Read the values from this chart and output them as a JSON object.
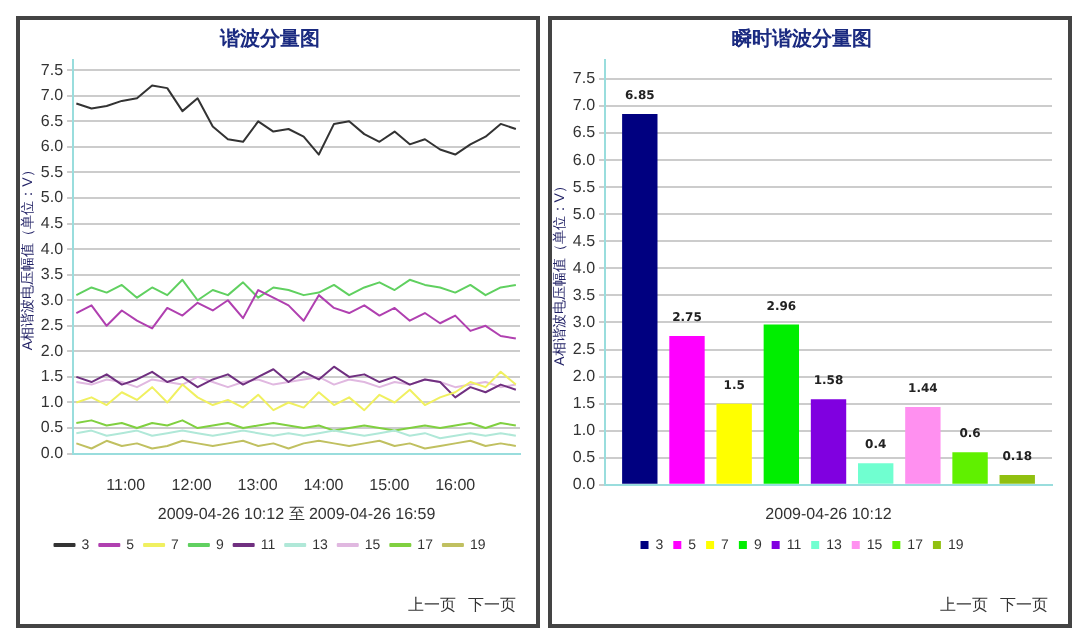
{
  "chart_data": [
    {
      "type": "line",
      "title": "谐波分量图",
      "xlabel": "2009-04-26 10:12 至 2009-04-26 16:59",
      "ylabel": "A相谐波电压幅值（单位：V）",
      "annotations": [
        "上一页",
        "下一页"
      ],
      "legend": "bottom",
      "grid": "y",
      "marker": "none",
      "xlim": [
        10.2,
        16.983
      ],
      "xticks": [
        {
          "value": 11,
          "label": "11:00"
        },
        {
          "value": 12,
          "label": "12:00"
        },
        {
          "value": 13,
          "label": "13:00"
        },
        {
          "value": 14,
          "label": "14:00"
        },
        {
          "value": 15,
          "label": "15:00"
        },
        {
          "value": 16,
          "label": "16:00"
        }
      ],
      "ylim": [
        0,
        7.7
      ],
      "yticks": [
        {
          "value": 0,
          "label": "0.0"
        },
        0.5,
        {
          "value": 1,
          "label": "1.0"
        },
        1.5,
        {
          "value": 2,
          "label": "2.0"
        },
        2.5,
        {
          "value": 3,
          "label": "3.0"
        },
        3.5,
        {
          "value": 4,
          "label": "4.0"
        },
        4.5,
        {
          "value": 5,
          "label": "5.0"
        },
        5.5,
        {
          "value": 6,
          "label": "6.0"
        },
        6.5,
        {
          "value": 7,
          "label": "7.0"
        },
        7.5
      ],
      "x": [
        10.25,
        10.48,
        10.71,
        10.94,
        11.17,
        11.4,
        11.63,
        11.86,
        12.09,
        12.32,
        12.55,
        12.78,
        13.01,
        13.24,
        13.47,
        13.7,
        13.93,
        14.16,
        14.39,
        14.62,
        14.85,
        15.08,
        15.31,
        15.54,
        15.77,
        16.0,
        16.23,
        16.46,
        16.69,
        16.92
      ],
      "series": [
        {
          "name": "3",
          "color": "#333333",
          "values": [
            6.85,
            6.75,
            6.8,
            6.9,
            6.95,
            7.2,
            7.15,
            6.7,
            6.95,
            6.4,
            6.15,
            6.1,
            6.5,
            6.3,
            6.35,
            6.2,
            5.85,
            6.45,
            6.5,
            6.25,
            6.1,
            6.3,
            6.05,
            6.15,
            5.95,
            5.85,
            6.05,
            6.2,
            6.45,
            6.35
          ]
        },
        {
          "name": "5",
          "color": "#b040b0",
          "values": [
            2.75,
            2.9,
            2.5,
            2.8,
            2.6,
            2.45,
            2.85,
            2.7,
            2.95,
            2.8,
            3.0,
            2.65,
            3.2,
            3.05,
            2.9,
            2.6,
            3.1,
            2.85,
            2.75,
            2.9,
            2.7,
            2.85,
            2.6,
            2.75,
            2.55,
            2.7,
            2.4,
            2.5,
            2.3,
            2.25
          ]
        },
        {
          "name": "7",
          "color": "#f0f060",
          "values": [
            1.0,
            1.1,
            0.95,
            1.2,
            1.05,
            1.3,
            1.0,
            1.35,
            1.1,
            0.95,
            1.05,
            0.9,
            1.15,
            0.85,
            1.0,
            0.9,
            1.2,
            0.95,
            1.1,
            0.85,
            1.15,
            1.0,
            1.25,
            0.95,
            1.1,
            1.2,
            1.4,
            1.3,
            1.6,
            1.35
          ]
        },
        {
          "name": "9",
          "color": "#60d060",
          "values": [
            3.1,
            3.25,
            3.15,
            3.3,
            3.05,
            3.25,
            3.1,
            3.4,
            3.0,
            3.2,
            3.1,
            3.35,
            3.05,
            3.25,
            3.2,
            3.1,
            3.15,
            3.3,
            3.1,
            3.25,
            3.35,
            3.2,
            3.4,
            3.3,
            3.25,
            3.15,
            3.3,
            3.1,
            3.25,
            3.3
          ]
        },
        {
          "name": "11",
          "color": "#703080",
          "values": [
            1.5,
            1.4,
            1.55,
            1.35,
            1.45,
            1.6,
            1.4,
            1.5,
            1.3,
            1.45,
            1.55,
            1.35,
            1.5,
            1.65,
            1.4,
            1.6,
            1.45,
            1.7,
            1.5,
            1.55,
            1.4,
            1.5,
            1.35,
            1.45,
            1.4,
            1.1,
            1.3,
            1.2,
            1.35,
            1.25
          ]
        },
        {
          "name": "13",
          "color": "#b0e8d8",
          "values": [
            0.4,
            0.45,
            0.35,
            0.4,
            0.45,
            0.35,
            0.4,
            0.45,
            0.4,
            0.35,
            0.4,
            0.45,
            0.4,
            0.35,
            0.4,
            0.35,
            0.4,
            0.45,
            0.4,
            0.35,
            0.4,
            0.45,
            0.35,
            0.4,
            0.3,
            0.35,
            0.4,
            0.35,
            0.4,
            0.35
          ]
        },
        {
          "name": "15",
          "color": "#e0b8e0",
          "values": [
            1.4,
            1.35,
            1.45,
            1.4,
            1.3,
            1.45,
            1.4,
            1.35,
            1.5,
            1.4,
            1.3,
            1.4,
            1.45,
            1.35,
            1.4,
            1.45,
            1.5,
            1.35,
            1.45,
            1.4,
            1.3,
            1.4,
            1.35,
            1.45,
            1.4,
            1.3,
            1.35,
            1.4,
            1.3,
            1.35
          ]
        },
        {
          "name": "17",
          "color": "#80d040",
          "values": [
            0.6,
            0.65,
            0.55,
            0.6,
            0.5,
            0.6,
            0.55,
            0.65,
            0.5,
            0.55,
            0.6,
            0.5,
            0.55,
            0.6,
            0.55,
            0.5,
            0.55,
            0.45,
            0.5,
            0.55,
            0.5,
            0.45,
            0.5,
            0.55,
            0.5,
            0.55,
            0.6,
            0.5,
            0.6,
            0.55
          ]
        },
        {
          "name": "19",
          "color": "#c0c060",
          "values": [
            0.2,
            0.1,
            0.25,
            0.15,
            0.2,
            0.1,
            0.15,
            0.25,
            0.2,
            0.15,
            0.2,
            0.25,
            0.15,
            0.2,
            0.1,
            0.2,
            0.25,
            0.2,
            0.15,
            0.2,
            0.25,
            0.15,
            0.2,
            0.1,
            0.15,
            0.2,
            0.25,
            0.15,
            0.2,
            0.15
          ]
        }
      ]
    },
    {
      "type": "bar",
      "title": "瞬时谐波分量图",
      "xlabel": "2009-04-26 10:12",
      "ylabel": "A相谐波电压幅值（单位：V）",
      "annotations": [
        "上一页",
        "下一页"
      ],
      "legend": "bottom",
      "grid": "y",
      "data_labels": true,
      "tick_labels": "y",
      "categories": [
        null
      ],
      "ylim": [
        0,
        7.85
      ],
      "yticks": [
        {
          "value": 0,
          "label": "0.0"
        },
        0.5,
        {
          "value": 1,
          "label": "1.0"
        },
        1.5,
        {
          "value": 2,
          "label": "2.0"
        },
        2.5,
        {
          "value": 3,
          "label": "3.0"
        },
        3.5,
        {
          "value": 4,
          "label": "4.0"
        },
        4.5,
        {
          "value": 5,
          "label": "5.0"
        },
        5.5,
        {
          "value": 6,
          "label": "6.0"
        },
        6.5,
        {
          "value": 7,
          "label": "7.0"
        },
        7.5
      ],
      "series": [
        {
          "name": "3",
          "color": "#000080",
          "values": [
            6.85
          ]
        },
        {
          "name": "5",
          "color": "#ff00ff",
          "values": [
            2.75
          ]
        },
        {
          "name": "7",
          "color": "#ffff00",
          "values": [
            1.5
          ]
        },
        {
          "name": "9",
          "color": "#00ee00",
          "values": [
            2.96
          ]
        },
        {
          "name": "11",
          "color": "#8000e0",
          "values": [
            1.58
          ]
        },
        {
          "name": "13",
          "color": "#70ffd0",
          "values": [
            0.4
          ]
        },
        {
          "name": "15",
          "color": "#ff90f0",
          "values": [
            1.44
          ]
        },
        {
          "name": "17",
          "color": "#60f000",
          "values": [
            0.6
          ]
        },
        {
          "name": "19",
          "color": "#90c010",
          "values": [
            0.18
          ]
        }
      ]
    }
  ]
}
